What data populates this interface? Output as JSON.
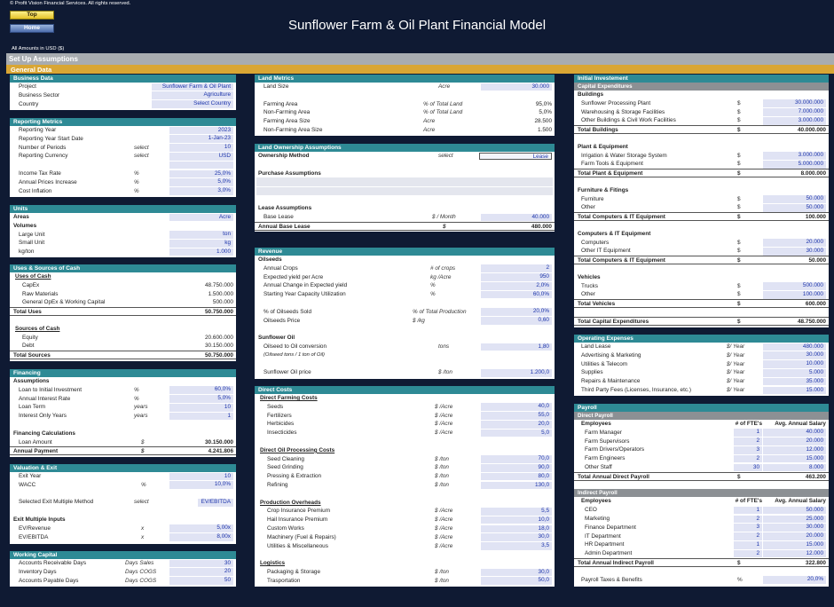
{
  "header": {
    "copyright": "© Profit Vision Financial Services. All rights reserved.",
    "top_btn": "Top",
    "home_btn": "Home",
    "title": "Sunflower Farm & Oil Plant Financial Model",
    "amounts": "All Amounts in  USD ($)",
    "setup": "Set Up Assumptions",
    "general": "General Data"
  },
  "business": {
    "title": "Business Data",
    "rows": [
      {
        "label": "Project",
        "value": "Sunflower Farm & Oil Plant"
      },
      {
        "label": "Business Sector",
        "value": "Agriculture"
      },
      {
        "label": "Country",
        "value": "Select Country"
      }
    ]
  },
  "reporting": {
    "title": "Reporting Metrics",
    "rows": [
      {
        "label": "Reporting Year",
        "unit": "",
        "value": "2023"
      },
      {
        "label": "Reporting Year Start Date",
        "unit": "",
        "value": "1-Jan-23"
      },
      {
        "label": "Number of Periods",
        "unit": "select",
        "value": "10"
      },
      {
        "label": "Reporting Currency",
        "unit": "select",
        "value": "USD"
      },
      {
        "label": "",
        "unit": "",
        "value": ""
      },
      {
        "label": "Income Tax Rate",
        "unit": "%",
        "value": "25,0%"
      },
      {
        "label": "Annual Prices Increase",
        "unit": "%",
        "value": "5,0%"
      },
      {
        "label": "Cost Inflation",
        "unit": "%",
        "value": "3,0%"
      }
    ]
  },
  "units": {
    "title": "Units",
    "areas_label": "Areas",
    "areas_value": "Acre",
    "volumes_label": "Volumes",
    "rows": [
      {
        "label": "Large Unit",
        "value": "ton"
      },
      {
        "label": "Small Unit",
        "value": "kg"
      },
      {
        "label": "kg/ton",
        "value": "1.000"
      }
    ]
  },
  "uses": {
    "title": "Uses & Sources of Cash",
    "uses_label": "Uses of Cash",
    "rows": [
      {
        "label": "CapEx",
        "value": "48.750.000"
      },
      {
        "label": "Raw Materials",
        "value": "1.500.000"
      },
      {
        "label": "General OpEx & Working Capital",
        "value": "500.000"
      }
    ],
    "total_uses_label": "Total Uses",
    "total_uses": "50.750.000",
    "sources_label": "Sources of Cash",
    "sources": [
      {
        "label": "Equity",
        "value": "20.600.000"
      },
      {
        "label": "Debt",
        "value": "30.150.000"
      }
    ],
    "total_sources_label": "Total Sources",
    "total_sources": "50.750.000"
  },
  "financing": {
    "title": "Financing",
    "assumptions_label": "Assumptions",
    "rows": [
      {
        "label": "Loan to Initial Investment",
        "unit": "%",
        "value": "60,0%"
      },
      {
        "label": "Annual Interest Rate",
        "unit": "%",
        "value": "5,0%"
      },
      {
        "label": "Loan Term",
        "unit": "years",
        "value": "10"
      },
      {
        "label": "Interest Only Years",
        "unit": "years",
        "value": "1"
      }
    ],
    "calc_label": "Financing Calculations",
    "loan_label": "Loan Amount",
    "loan_unit": "$",
    "loan_value": "30.150.000",
    "payment_label": "Annual Payment",
    "payment_unit": "$",
    "payment_value": "4.241.806"
  },
  "valuation": {
    "title": "Valuation & Exit",
    "rows": [
      {
        "label": "Exit Year",
        "unit": "",
        "value": "10"
      },
      {
        "label": "WACC",
        "unit": "%",
        "value": "10,0%"
      }
    ],
    "method_label": "Selected Exit Multiple Method",
    "method_unit": "select",
    "method_value": "EV/EBITDA",
    "inputs_label": "Exit Multiple Inputs",
    "inputs": [
      {
        "label": "EV/Revenue",
        "unit": "x",
        "value": "5,00x"
      },
      {
        "label": "EV/EBITDA",
        "unit": "x",
        "value": "8,00x"
      }
    ]
  },
  "working": {
    "title": "Working Capital",
    "rows": [
      {
        "label": "Accounts Receivable Days",
        "unit": "Days Sales",
        "value": "30"
      },
      {
        "label": "Inventory Days",
        "unit": "Days COGS",
        "value": "20"
      },
      {
        "label": "Accounts Payable Days",
        "unit": "Days COGS",
        "value": "50"
      }
    ]
  },
  "land": {
    "title": "Land Metrics",
    "size_label": "Land Size",
    "size_unit": "Acre",
    "size_value": "30.000",
    "rows": [
      {
        "label": "Farming Area",
        "unit": "% of Total Land",
        "value": "95,0%"
      },
      {
        "label": "Non-Farming Area",
        "unit": "% of Total Land",
        "value": "5,0%"
      },
      {
        "label": "Farming Area Size",
        "unit": "Acre",
        "value": "28.500"
      },
      {
        "label": "Non-Farming Area Size",
        "unit": "Acre",
        "value": "1.500"
      }
    ]
  },
  "ownership": {
    "title": "Land Ownership Assumptions",
    "method_label": "Ownership Method",
    "method_unit": "select",
    "method_value": "Lease",
    "purchase_label": "Purchase Assumptions",
    "lease_label": "Lease Assumptions",
    "base_label": "Base Lease",
    "base_unit": "$ / Month",
    "base_value": "40.000",
    "annual_label": "Annual Base Lease",
    "annual_unit": "$",
    "annual_value": "480.000"
  },
  "revenue": {
    "title": "Revenue",
    "oilseeds_label": "Oilseeds",
    "rows": [
      {
        "label": "Annual Crops",
        "unit": "# of crops",
        "value": "2"
      },
      {
        "label": "Expected yield per Acre",
        "unit": "kg /Acre",
        "value": "950"
      },
      {
        "label": "Annual Change in Expected yield",
        "unit": "%",
        "value": "2,0%"
      },
      {
        "label": "Starting Year Capacity Utilization",
        "unit": "%",
        "value": "60,0%"
      }
    ],
    "rows2": [
      {
        "label": "% of Oilseeds Sold",
        "unit": "% of Total Production",
        "value": "20,0%"
      },
      {
        "label": "Oilseeds Price",
        "unit": "$ /kg",
        "value": "0,60"
      }
    ],
    "oil_label": "Sunflower Oil",
    "conv_label": "Oilseed to Oil conversion",
    "conv_unit": "tons",
    "conv_value": "1,80",
    "conv_note": "(Oilseed tons / 1 ton of Oil)",
    "price_label": "Sunflower Oil price",
    "price_unit": "$ /ton",
    "price_value": "1.200,0"
  },
  "direct": {
    "title": "Direct Costs",
    "farming_label": "Direct Farming Costs",
    "farming": [
      {
        "label": "Seeds",
        "unit": "$ /Acre",
        "value": "40,0"
      },
      {
        "label": "Fertilizers",
        "unit": "$ /Acre",
        "value": "55,0"
      },
      {
        "label": "Herbicides",
        "unit": "$ /Acre",
        "value": "20,0"
      },
      {
        "label": "Insecticides",
        "unit": "$ /Acre",
        "value": "5,0"
      }
    ],
    "processing_label": "Direct Oil Processing Costs",
    "processing": [
      {
        "label": "Seed Cleaning",
        "unit": "$ /ton",
        "value": "70,0"
      },
      {
        "label": "Seed Grinding",
        "unit": "$ /ton",
        "value": "90,0"
      },
      {
        "label": "Pressing & Extraction",
        "unit": "$ /ton",
        "value": "80,0"
      },
      {
        "label": "Refining",
        "unit": "$ /ton",
        "value": "130,0"
      }
    ],
    "overheads_label": "Production Overheads",
    "overheads": [
      {
        "label": "Crop Insurance Premium",
        "unit": "$ /Acre",
        "value": "5,5"
      },
      {
        "label": "Hail Insurance Premium",
        "unit": "$ /Acre",
        "value": "10,0"
      },
      {
        "label": "Custom Works",
        "unit": "$ /Acre",
        "value": "18,0"
      },
      {
        "label": "Machinery (Fuel & Repairs)",
        "unit": "$ /Acre",
        "value": "30,0"
      },
      {
        "label": "Utilities & Miscellaneous",
        "unit": "$ /Acre",
        "value": "3,5"
      }
    ],
    "logistics_label": "Logistics",
    "logistics": [
      {
        "label": "Packaging & Storage",
        "unit": "$ /ton",
        "value": "30,0"
      },
      {
        "label": "Trasportation",
        "unit": "$ /ton",
        "value": "50,0"
      }
    ]
  },
  "initial": {
    "title": "Initial Investement",
    "capex_label": "Capital Expenditures",
    "groups": [
      {
        "name": "Buildings",
        "items": [
          {
            "label": "Sunflower Processing Plant",
            "unit": "$",
            "value": "30.000.000"
          },
          {
            "label": "Warehousing & Storage Facilities",
            "unit": "$",
            "value": "7.000.000"
          },
          {
            "label": "Other Buildings & Civil Work Facilities",
            "unit": "$",
            "value": "3.000.000"
          }
        ],
        "total_label": "Total Buildings",
        "total_unit": "$",
        "total": "40.000.000"
      },
      {
        "name": "Plant & Equipment",
        "items": [
          {
            "label": "Irrigation & Water Storage System",
            "unit": "$",
            "value": "3.000.000"
          },
          {
            "label": "Farm Tools & Equipment",
            "unit": "$",
            "value": "5.000.000"
          }
        ],
        "total_label": "Total Plant & Equipment",
        "total_unit": "$",
        "total": "8.000.000"
      },
      {
        "name": "Furniture & Fitings",
        "items": [
          {
            "label": "Furniture",
            "unit": "$",
            "value": "50.000"
          },
          {
            "label": "Other",
            "unit": "$",
            "value": "50.000"
          }
        ],
        "total_label": "Total Computers & IT Equipment",
        "total_unit": "$",
        "total": "100.000"
      },
      {
        "name": "Computers & IT Equipment",
        "items": [
          {
            "label": "Computers",
            "unit": "$",
            "value": "20.000"
          },
          {
            "label": "Other IT Equipment",
            "unit": "$",
            "value": "30.000"
          }
        ],
        "total_label": "Total Computers & IT Equipment",
        "total_unit": "$",
        "total": "50.000"
      },
      {
        "name": "Vehicles",
        "items": [
          {
            "label": "Trucks",
            "unit": "$",
            "value": "500.000"
          },
          {
            "label": "Other",
            "unit": "$",
            "value": "100.000"
          }
        ],
        "total_label": "Total Vehicles",
        "total_unit": "$",
        "total": "600.000"
      }
    ],
    "grand_label": "Total Capital Expenditures",
    "grand_unit": "$",
    "grand": "48.750.000"
  },
  "opex": {
    "title": "Operating Expenses",
    "rows": [
      {
        "label": "Land Lease",
        "unit": "$/ Year",
        "value": "480.000"
      },
      {
        "label": "Advertising & Marketing",
        "unit": "$/ Year",
        "value": "30.000"
      },
      {
        "label": "Utilities & Telecom",
        "unit": "$/ Year",
        "value": "10.000"
      },
      {
        "label": "Supplies",
        "unit": "$/ Year",
        "value": "5.000"
      },
      {
        "label": "Repairs & Maintenance",
        "unit": "$/ Year",
        "value": "35.000"
      },
      {
        "label": "Third Party Fees (Licenses, Insurance, etc.)",
        "unit": "$/ Year",
        "value": "15.000"
      }
    ]
  },
  "payroll": {
    "title": "Payroll",
    "direct_label": "Direct Payroll",
    "col_emp": "Employees",
    "col_fte": "# of FTE's",
    "col_sal": "Avg. Annual Salary",
    "direct": [
      {
        "label": "Farm Manager",
        "fte": "1",
        "salary": "40.000"
      },
      {
        "label": "Farm Supervisors",
        "fte": "2",
        "salary": "20.000"
      },
      {
        "label": "Farm Drivers/Operators",
        "fte": "3",
        "salary": "12.000"
      },
      {
        "label": "Farm Engineers",
        "fte": "2",
        "salary": "15.000"
      },
      {
        "label": "Other Staff",
        "fte": "30",
        "salary": "8.000"
      }
    ],
    "direct_total_label": "Total Annual Direct Payroll",
    "direct_total_unit": "$",
    "direct_total": "463.200",
    "indirect_label": "Indirect Payroll",
    "indirect": [
      {
        "label": "CEO",
        "fte": "1",
        "salary": "50.000"
      },
      {
        "label": "Marketing",
        "fte": "2",
        "salary": "25.000"
      },
      {
        "label": "Finance Department",
        "fte": "3",
        "salary": "30.000"
      },
      {
        "label": "IT Department",
        "fte": "2",
        "salary": "20.000"
      },
      {
        "label": "HR Department",
        "fte": "1",
        "salary": "15.000"
      },
      {
        "label": "Admin Department",
        "fte": "2",
        "salary": "12.000"
      }
    ],
    "indirect_total_label": "Total Annual Indirect Payroll",
    "indirect_total_unit": "$",
    "indirect_total": "322.800",
    "taxes_label": "Payroll Taxes & Benefits",
    "taxes_unit": "%",
    "taxes_value": "20,0%"
  }
}
